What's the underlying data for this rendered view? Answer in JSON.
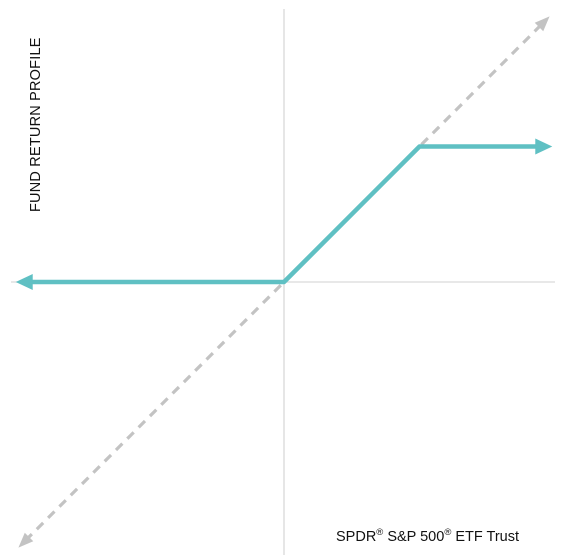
{
  "chart_data": {
    "type": "line",
    "ylabel": "FUND RETURN PROFILE",
    "xlabel": {
      "part1": "SPDR",
      "reg1": "®",
      "part2": " S&P 500",
      "reg2": "®",
      "part3": " ETF Trust"
    },
    "xlim": [
      -1,
      1
    ],
    "ylim": [
      -1,
      1
    ],
    "grid": false,
    "legend": "none",
    "series": [
      {
        "role": "fund-return-profile",
        "color": "#5fc0c3",
        "style": "solid",
        "arrows": "both-ends",
        "points": [
          [
            -0.99,
            0
          ],
          [
            0,
            0
          ],
          [
            0.5,
            0.5
          ],
          [
            0.99,
            0.5
          ]
        ]
      },
      {
        "role": "reference-one-to-one",
        "color": "#c3c3c3",
        "style": "dashed",
        "arrows": "both-ends",
        "points": [
          [
            -0.98,
            -0.98
          ],
          [
            0.98,
            0.98
          ]
        ]
      }
    ]
  }
}
